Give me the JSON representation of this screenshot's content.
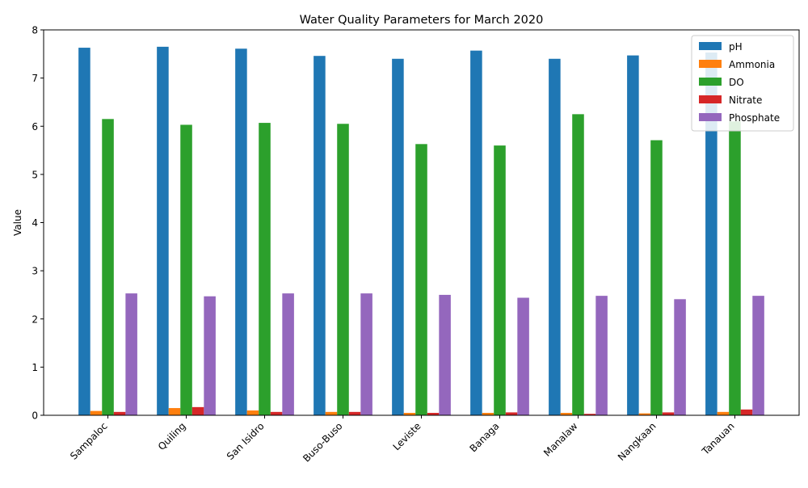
{
  "chart_data": {
    "type": "bar",
    "title": "Water Quality Parameters for March 2020",
    "xlabel": "",
    "ylabel": "Value",
    "ylim": [
      0,
      8
    ],
    "yticks": [
      0,
      1,
      2,
      3,
      4,
      5,
      6,
      7,
      8
    ],
    "grid": false,
    "legend_position": "top-right",
    "categories": [
      "Sampaloc",
      "Quiling",
      "San Isidro",
      "Buso-Buso",
      "Leviste",
      "Banaga",
      "Manalaw",
      "Nangkaan",
      "Tanauan"
    ],
    "series": [
      {
        "name": "pH",
        "color": "#1f77b4",
        "values": [
          7.63,
          7.65,
          7.61,
          7.46,
          7.4,
          7.57,
          7.4,
          7.47,
          7.53
        ]
      },
      {
        "name": "Ammonia",
        "color": "#ff7f0e",
        "values": [
          0.09,
          0.15,
          0.1,
          0.07,
          0.05,
          0.05,
          0.05,
          0.04,
          0.07
        ]
      },
      {
        "name": "DO",
        "color": "#2ca02c",
        "values": [
          6.15,
          6.03,
          6.07,
          6.05,
          5.63,
          5.6,
          6.25,
          5.71,
          6.1
        ]
      },
      {
        "name": "Nitrate",
        "color": "#d62728",
        "values": [
          0.07,
          0.17,
          0.07,
          0.07,
          0.05,
          0.06,
          0.03,
          0.06,
          0.12
        ]
      },
      {
        "name": "Phosphate",
        "color": "#9467bd",
        "values": [
          2.53,
          2.47,
          2.53,
          2.53,
          2.5,
          2.44,
          2.48,
          2.41,
          2.48
        ]
      }
    ]
  }
}
